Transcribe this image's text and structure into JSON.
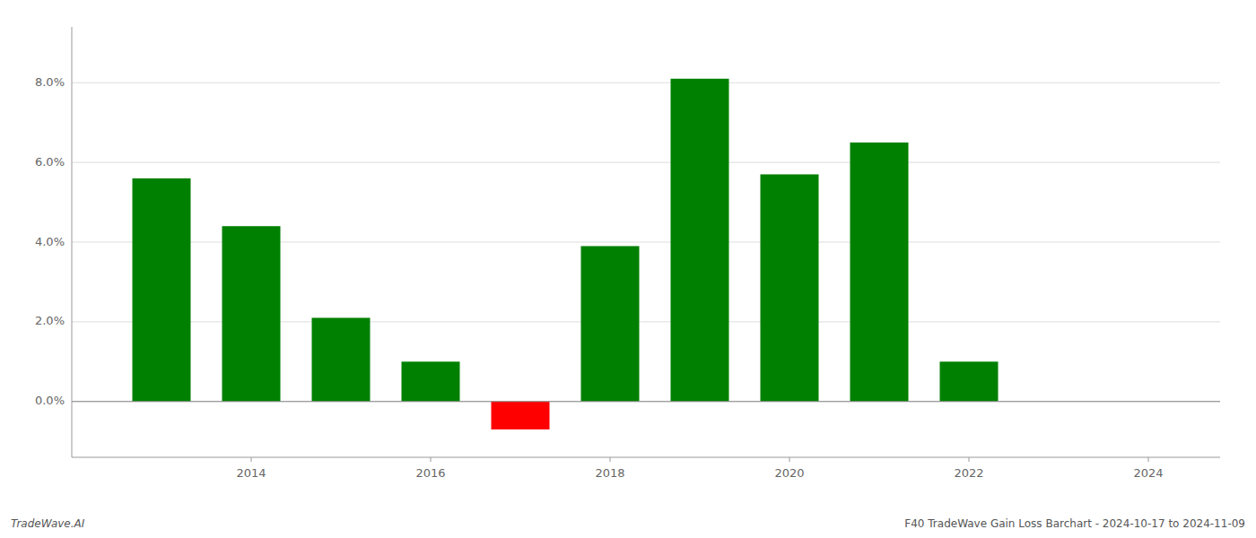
{
  "chart_data": {
    "type": "bar",
    "x": [
      2013,
      2014,
      2015,
      2016,
      2017,
      2018,
      2019,
      2020,
      2021,
      2022,
      2023
    ],
    "values": [
      0.056,
      0.044,
      0.021,
      0.01,
      -0.007,
      0.039,
      0.081,
      0.057,
      0.065,
      0.01,
      0.0
    ],
    "colors": [
      "#008000",
      "#008000",
      "#008000",
      "#008000",
      "#ff0000",
      "#008000",
      "#008000",
      "#008000",
      "#008000",
      "#008000",
      "#008000"
    ],
    "xlim": [
      2012.0,
      2024.8
    ],
    "xticks": [
      2014,
      2016,
      2018,
      2020,
      2022,
      2024
    ],
    "ylim": [
      -0.014,
      0.094
    ],
    "yticks": [
      {
        "value": 0.0,
        "label": "0.0%"
      },
      {
        "value": 0.02,
        "label": "2.0%"
      },
      {
        "value": 0.04,
        "label": "4.0%"
      },
      {
        "value": 0.06,
        "label": "6.0%"
      },
      {
        "value": 0.08,
        "label": "8.0%"
      }
    ],
    "grid": true,
    "annotations": [
      "TradeWave.AI",
      "F40 TradeWave Gain Loss Barchart - 2024-10-17 to 2024-11-09"
    ]
  }
}
